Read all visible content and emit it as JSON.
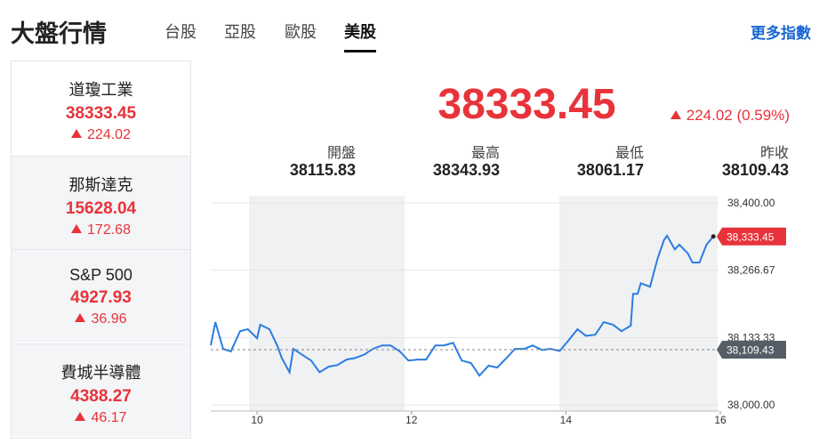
{
  "header": {
    "title": "大盤行情",
    "tabs": [
      "台股",
      "亞股",
      "歐股",
      "美股"
    ],
    "active_tab": 3,
    "more": "更多指數"
  },
  "indices": [
    {
      "name": "道瓊工業",
      "price": "38333.45",
      "change": "224.02"
    },
    {
      "name": "那斯達克",
      "price": "15628.04",
      "change": "172.68"
    },
    {
      "name": "S&P 500",
      "price": "4927.93",
      "change": "36.96"
    },
    {
      "name": "費城半導體",
      "price": "4388.27",
      "change": "46.17"
    }
  ],
  "selected_index": 0,
  "main": {
    "price": "38333.45",
    "change": "224.02 (0.59%)",
    "stats": [
      {
        "label": "開盤",
        "value": "38115.83"
      },
      {
        "label": "最高",
        "value": "38343.93"
      },
      {
        "label": "最低",
        "value": "38061.17"
      },
      {
        "label": "昨收",
        "value": "38109.43"
      }
    ]
  },
  "chart": {
    "type": "line",
    "color": "#2a7de1",
    "x": [
      9.4,
      9.46,
      9.56,
      9.66,
      9.78,
      9.88,
      10.0,
      10.04,
      10.16,
      10.26,
      10.32,
      10.42,
      10.47,
      10.58,
      10.7,
      10.81,
      10.93,
      11.04,
      11.16,
      11.27,
      11.39,
      11.5,
      11.62,
      11.73,
      11.85,
      11.96,
      12.08,
      12.19,
      12.31,
      12.42,
      12.54,
      12.65,
      12.77,
      12.88,
      13.0,
      13.11,
      13.23,
      13.34,
      13.46,
      13.57,
      13.69,
      13.8,
      13.92,
      14.03,
      14.15,
      14.26,
      14.38,
      14.49,
      14.61,
      14.72,
      14.84,
      14.87,
      14.93,
      14.97,
      15.09,
      15.19,
      15.27,
      15.31,
      15.41,
      15.47,
      15.58,
      15.64,
      15.73,
      15.82,
      15.91
    ],
    "values": [
      38118,
      38164,
      38111,
      38106,
      38146,
      38150,
      38132,
      38159,
      38150,
      38118,
      38093,
      38065,
      38111,
      38100,
      38088,
      38065,
      38076,
      38079,
      38090,
      38093,
      38100,
      38111,
      38118,
      38118,
      38106,
      38088,
      38090,
      38090,
      38118,
      38118,
      38123,
      38088,
      38083,
      38058,
      38078,
      38074,
      38093,
      38111,
      38111,
      38118,
      38109,
      38111,
      38107,
      38127,
      38150,
      38137,
      38139,
      38164,
      38159,
      38146,
      38157,
      38220,
      38220,
      38241,
      38234,
      38291,
      38326,
      38335,
      38308,
      38317,
      38300,
      38282,
      38282,
      38317,
      38333.45
    ],
    "xlim": [
      9.4,
      16
    ],
    "ylim": [
      37988,
      38414
    ],
    "xticks": [
      10,
      12,
      14,
      16
    ],
    "yticks": [
      {
        "value": 38000,
        "label": "38,000.00"
      },
      {
        "value": 38133.33,
        "label": "38,133.33"
      },
      {
        "value": 38266.67,
        "label": "38,266.67"
      },
      {
        "value": 38400,
        "label": "38,400.00"
      }
    ],
    "markers": [
      {
        "value": 38109.43,
        "label": "38,109.43",
        "color": "#555d66"
      },
      {
        "value": 38333.45,
        "label": "38,333.45",
        "color": "#e8333a"
      }
    ]
  }
}
